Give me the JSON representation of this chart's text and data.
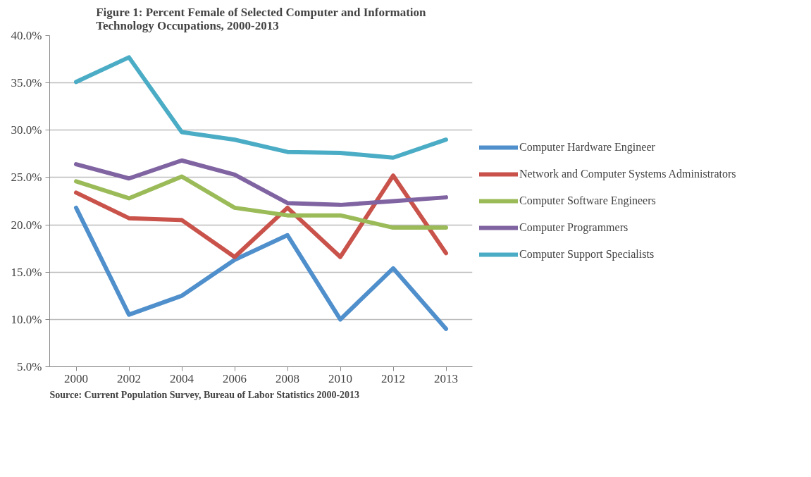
{
  "chart_data": {
    "type": "line",
    "title": "Figure 1: Percent Female of Selected Computer and Information Technology Occupations, 2000-2013",
    "categories": [
      "2000",
      "2002",
      "2004",
      "2006",
      "2008",
      "2010",
      "2012",
      "2013"
    ],
    "series": [
      {
        "name": "Computer Hardware Engineer",
        "color": "#4f8fcc",
        "values": [
          21.8,
          10.5,
          12.5,
          16.3,
          18.9,
          10.0,
          15.4,
          9.0
        ]
      },
      {
        "name": "Network and Computer Systems Administrators",
        "color": "#c9534b",
        "values": [
          23.4,
          20.7,
          20.5,
          16.6,
          21.8,
          16.6,
          25.2,
          17.0
        ]
      },
      {
        "name": "Computer Software Engineers",
        "color": "#9bbb59",
        "values": [
          24.6,
          22.8,
          25.1,
          21.8,
          21.0,
          21.0,
          19.7,
          19.7
        ]
      },
      {
        "name": "Computer Programmers",
        "color": "#8064a2",
        "values": [
          26.4,
          24.9,
          26.8,
          25.3,
          22.3,
          22.1,
          22.5,
          22.9
        ]
      },
      {
        "name": "Computer Support Specialists",
        "color": "#4bacc6",
        "values": [
          35.1,
          37.7,
          29.8,
          29.0,
          27.7,
          27.6,
          27.1,
          29.0
        ]
      }
    ],
    "ylim": [
      5,
      40
    ],
    "yticks": [
      {
        "value": 5,
        "label": "5.0%"
      },
      {
        "value": 10,
        "label": "10.0%"
      },
      {
        "value": 15,
        "label": "15.0%"
      },
      {
        "value": 20,
        "label": "20.0%"
      },
      {
        "value": 25,
        "label": "25.0%"
      },
      {
        "value": 30,
        "label": "30.0%"
      },
      {
        "value": 35,
        "label": "35.0%"
      },
      {
        "value": 40,
        "label": "40.0%"
      }
    ],
    "grid": "y",
    "legend": "right",
    "marker": "none",
    "line_style": "solid",
    "annotations": [
      "Source: Current Population Survey, Bureau of Labor Statistics 2000-2013"
    ]
  }
}
